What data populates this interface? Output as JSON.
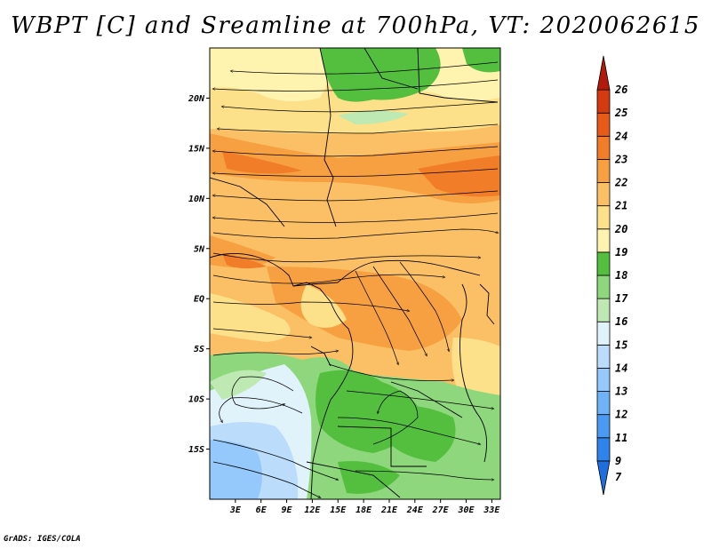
{
  "title": "WBPT [C] and Sreamline at 700hPa, VT: 2020062615",
  "credit": "GrADS: IGES/COLA",
  "map": {
    "lon_min": 0,
    "lon_max": 34,
    "lat_min": -20,
    "lat_max": 25,
    "lat_ticks": [
      {
        "value": 20,
        "label": "20N"
      },
      {
        "value": 15,
        "label": "15N"
      },
      {
        "value": 10,
        "label": "10N"
      },
      {
        "value": 5,
        "label": "5N"
      },
      {
        "value": 0,
        "label": "EQ"
      },
      {
        "value": -5,
        "label": "5S"
      },
      {
        "value": -10,
        "label": "10S"
      },
      {
        "value": -15,
        "label": "15S"
      }
    ],
    "lon_ticks": [
      {
        "value": 3,
        "label": "3E"
      },
      {
        "value": 6,
        "label": "6E"
      },
      {
        "value": 9,
        "label": "9E"
      },
      {
        "value": 12,
        "label": "12E"
      },
      {
        "value": 15,
        "label": "15E"
      },
      {
        "value": 18,
        "label": "18E"
      },
      {
        "value": 21,
        "label": "21E"
      },
      {
        "value": 24,
        "label": "24E"
      },
      {
        "value": 27,
        "label": "27E"
      },
      {
        "value": 30,
        "label": "30E"
      },
      {
        "value": 33,
        "label": "33E"
      }
    ]
  },
  "colorbar": {
    "levels": [
      "7",
      "9",
      "11",
      "12",
      "13",
      "14",
      "15",
      "16",
      "17",
      "18",
      "19",
      "20",
      "21",
      "22",
      "23",
      "24",
      "25",
      "26"
    ],
    "colors": [
      "#1e6ee0",
      "#2f84ec",
      "#4a9af4",
      "#6fb2f8",
      "#95c8fb",
      "#bcdcfb",
      "#e0f2fa",
      "#bfe9b2",
      "#8fd77d",
      "#54bf3f",
      "#fff3b0",
      "#fde18a",
      "#fbc066",
      "#f7a042",
      "#f27d28",
      "#e85a17",
      "#d43a10",
      "#b31a0b"
    ]
  }
}
